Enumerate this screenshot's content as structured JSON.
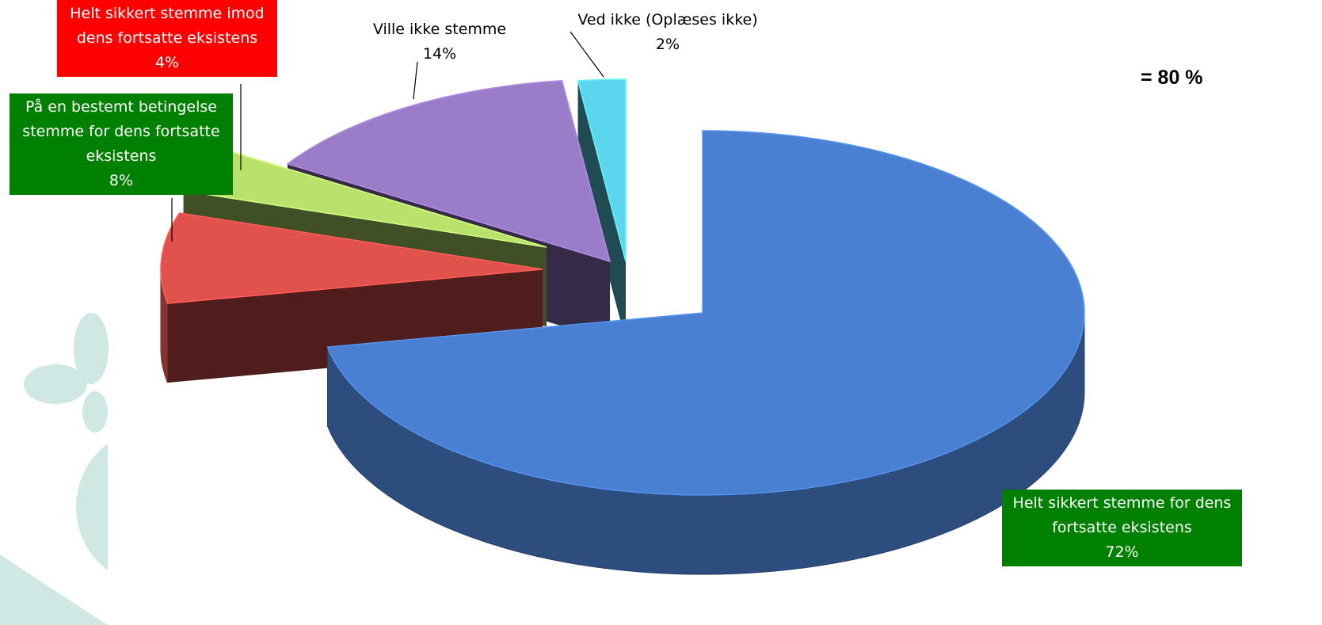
{
  "chart_data": {
    "type": "pie3d",
    "categories": [
      "Helt sikkert stemme for dens fortsatte eksistens",
      "På en bestemt betingelse stemme for dens fortsatte eksistens",
      "Helt sikkert stemme imod dens fortsatte eksistens",
      "Ville ikke stemme",
      "Ved ikke (Oplæses ikke)"
    ],
    "values": [
      72,
      8,
      4,
      14,
      2
    ],
    "value_labels": [
      "72%",
      "8%",
      "4%",
      "14%",
      "2%"
    ],
    "colors": [
      "#4a80d2",
      "#e2524c",
      "#b8e26c",
      "#9b7cc9",
      "#5cd6ee"
    ],
    "label_colors": [
      "#008000",
      "#008000",
      "#ff0000",
      null,
      null
    ],
    "annotation": "= 80 %"
  }
}
